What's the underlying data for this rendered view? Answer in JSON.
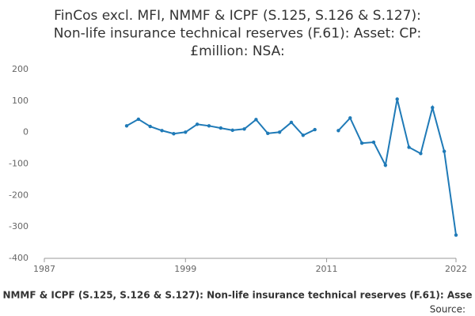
{
  "chart_data": {
    "type": "line",
    "title": [
      "FinCos excl. MFI, NMMF & ICPF (S.125, S.126 & S.127):",
      "Non-life insurance technical reserves (F.61): Asset: CP:",
      "£million: NSA:"
    ],
    "x": [
      1994,
      1995,
      1996,
      1997,
      1998,
      1999,
      2000,
      2001,
      2002,
      2003,
      2004,
      2005,
      2006,
      2007,
      2008,
      2009,
      2010,
      2011,
      2012,
      2013,
      2014,
      2015,
      2016,
      2017,
      2018,
      2019,
      2020,
      2021,
      2022
    ],
    "series": [
      {
        "name": "NMMF & ICPF (S.125, S.126 & S.127): Non-life insurance technical reserves (F.61): Asse",
        "color": "#1f7ab7",
        "values": [
          21,
          42,
          19,
          6,
          -4,
          1,
          26,
          21,
          14,
          7,
          11,
          41,
          -3,
          1,
          32,
          -9,
          9,
          null,
          6,
          46,
          -34,
          -31,
          -104,
          106,
          -47,
          -67,
          79,
          -60,
          -326
        ]
      }
    ],
    "xlim": [
      1987,
      2022
    ],
    "xticks": [
      1987,
      1999,
      2011,
      2022
    ],
    "ylim": [
      -400,
      200
    ],
    "yticks": [
      -400,
      -300,
      -200,
      -100,
      0,
      100,
      200
    ],
    "source": "Source:"
  }
}
